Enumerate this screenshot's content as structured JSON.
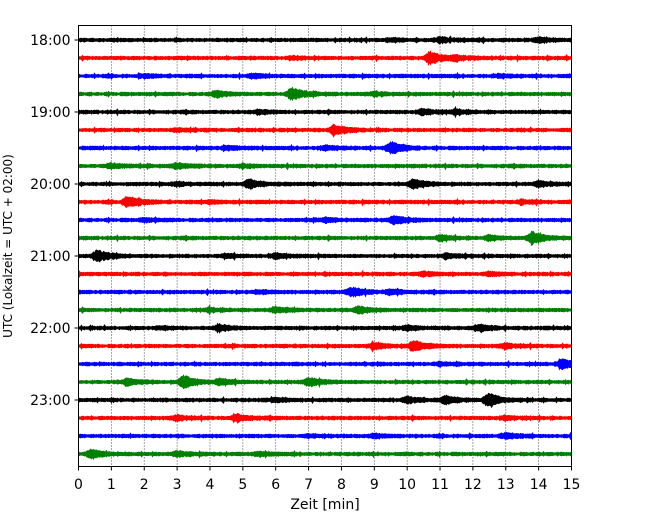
{
  "chart_data": {
    "type": "line",
    "title": "",
    "xlabel": "Zeit  [min]",
    "ylabel": "UTC (Lokalzeit = UTC + 02:00)",
    "xlim": [
      0,
      15
    ],
    "x_ticks": [
      "0",
      "1",
      "2",
      "3",
      "4",
      "5",
      "6",
      "7",
      "8",
      "9",
      "10",
      "11",
      "12",
      "13",
      "14",
      "15"
    ],
    "y_tick_labels": [
      "18:00",
      "19:00",
      "20:00",
      "21:00",
      "22:00",
      "23:00"
    ],
    "grid": "vertical dotted",
    "trace_interval_min": 15,
    "trace_colors": [
      "#000000",
      "#ff0000",
      "#0000ff",
      "#008000"
    ],
    "traces": [
      {
        "start": "18:00",
        "color": "#000000",
        "events": [
          [
            9.5,
            1.2
          ],
          [
            11.0,
            2.2
          ],
          [
            14.0,
            2.0
          ]
        ]
      },
      {
        "start": "18:15",
        "color": "#ff0000",
        "events": [
          [
            6.5,
            1.2
          ],
          [
            10.7,
            5.5
          ],
          [
            11.5,
            1.8
          ]
        ]
      },
      {
        "start": "18:30",
        "color": "#0000ff",
        "events": [
          [
            2.0,
            1.2
          ],
          [
            5.3,
            1.5
          ],
          [
            12.8,
            1.2
          ]
        ]
      },
      {
        "start": "18:45",
        "color": "#008000",
        "events": [
          [
            4.2,
            2.5
          ],
          [
            6.5,
            5.0
          ],
          [
            9.0,
            1.5
          ]
        ]
      },
      {
        "start": "19:00",
        "color": "#000000",
        "events": [
          [
            5.5,
            1.5
          ],
          [
            10.5,
            2.5
          ],
          [
            11.5,
            2.0
          ]
        ]
      },
      {
        "start": "19:15",
        "color": "#ff0000",
        "events": [
          [
            7.8,
            4.5
          ],
          [
            3.0,
            1.2
          ]
        ]
      },
      {
        "start": "19:30",
        "color": "#0000ff",
        "events": [
          [
            9.5,
            5.0
          ],
          [
            7.5,
            2.0
          ],
          [
            4.5,
            1.5
          ]
        ]
      },
      {
        "start": "19:45",
        "color": "#008000",
        "events": [
          [
            1.0,
            2.0
          ],
          [
            3.0,
            2.5
          ],
          [
            5.0,
            1.2
          ]
        ]
      },
      {
        "start": "20:00",
        "color": "#000000",
        "events": [
          [
            5.2,
            4.0
          ],
          [
            10.2,
            4.5
          ],
          [
            14.0,
            2.5
          ],
          [
            3.0,
            1.5
          ]
        ]
      },
      {
        "start": "20:15",
        "color": "#ff0000",
        "events": [
          [
            1.5,
            5.0
          ],
          [
            4.0,
            1.5
          ],
          [
            13.5,
            1.5
          ]
        ]
      },
      {
        "start": "20:30",
        "color": "#0000ff",
        "events": [
          [
            9.6,
            3.5
          ],
          [
            7.5,
            1.5
          ],
          [
            2.0,
            1.2
          ]
        ]
      },
      {
        "start": "20:45",
        "color": "#008000",
        "events": [
          [
            13.8,
            5.0
          ],
          [
            11.0,
            2.0
          ],
          [
            12.5,
            2.0
          ]
        ]
      },
      {
        "start": "21:00",
        "color": "#000000",
        "events": [
          [
            0.6,
            5.0
          ],
          [
            6.0,
            2.0
          ],
          [
            11.2,
            2.0
          ],
          [
            4.5,
            1.5
          ]
        ]
      },
      {
        "start": "21:15",
        "color": "#ff0000",
        "events": [
          [
            10.5,
            1.8
          ],
          [
            12.5,
            1.5
          ]
        ]
      },
      {
        "start": "21:30",
        "color": "#0000ff",
        "events": [
          [
            8.3,
            4.0
          ],
          [
            9.5,
            2.0
          ],
          [
            5.5,
            1.2
          ]
        ]
      },
      {
        "start": "21:45",
        "color": "#008000",
        "events": [
          [
            6.0,
            2.5
          ],
          [
            8.5,
            3.0
          ],
          [
            4.0,
            1.5
          ]
        ]
      },
      {
        "start": "22:00",
        "color": "#000000",
        "events": [
          [
            4.3,
            2.5
          ],
          [
            12.2,
            3.0
          ],
          [
            10.0,
            2.0
          ],
          [
            2.5,
            1.5
          ]
        ]
      },
      {
        "start": "22:15",
        "color": "#ff0000",
        "events": [
          [
            10.2,
            4.5
          ],
          [
            9.0,
            2.5
          ],
          [
            13.0,
            2.0
          ]
        ]
      },
      {
        "start": "22:30",
        "color": "#0000ff",
        "events": [
          [
            14.7,
            4.0
          ],
          [
            11.0,
            1.5
          ]
        ]
      },
      {
        "start": "22:45",
        "color": "#008000",
        "events": [
          [
            3.2,
            5.5
          ],
          [
            1.5,
            3.0
          ],
          [
            7.0,
            3.5
          ],
          [
            4.3,
            2.5
          ]
        ]
      },
      {
        "start": "23:00",
        "color": "#000000",
        "events": [
          [
            12.5,
            5.5
          ],
          [
            11.2,
            3.5
          ],
          [
            10.0,
            2.5
          ],
          [
            6.0,
            1.5
          ]
        ]
      },
      {
        "start": "23:15",
        "color": "#ff0000",
        "events": [
          [
            4.8,
            3.0
          ],
          [
            3.0,
            2.0
          ],
          [
            13.0,
            1.5
          ]
        ]
      },
      {
        "start": "23:30",
        "color": "#0000ff",
        "events": [
          [
            13.0,
            2.5
          ],
          [
            9.0,
            1.5
          ],
          [
            7.0,
            1.2
          ]
        ]
      },
      {
        "start": "23:45",
        "color": "#008000",
        "events": [
          [
            0.4,
            3.5
          ],
          [
            3.0,
            2.0
          ],
          [
            5.5,
            1.5
          ]
        ]
      }
    ]
  }
}
